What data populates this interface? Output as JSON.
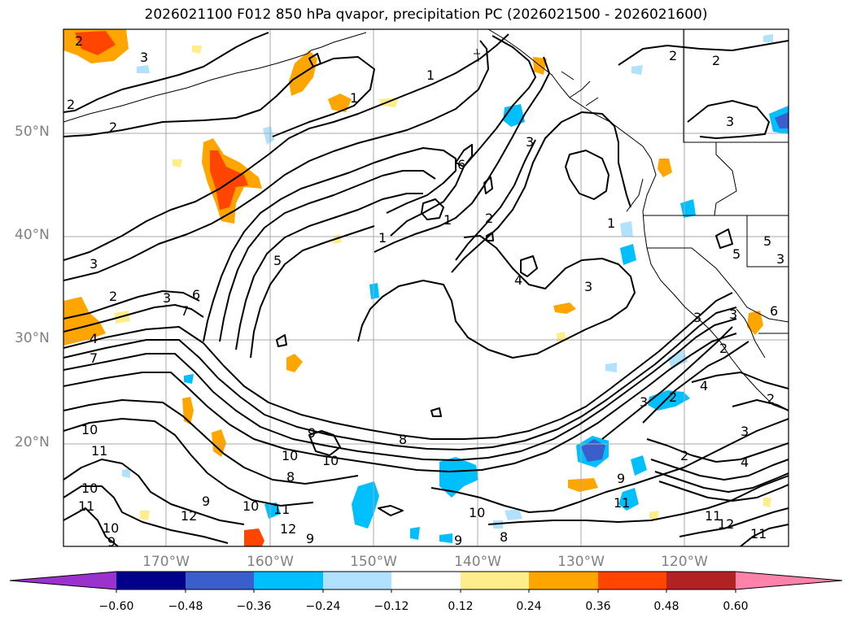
{
  "title": "2026021100 F012 850 hPa qvapor, precipitation PC (2026021500 - 2026021600)",
  "map": {
    "lat_labels": [
      "50°N",
      "40°N",
      "30°N",
      "20°N"
    ],
    "lon_labels": [
      "170°W",
      "160°W",
      "150°W",
      "140°W",
      "130°W",
      "120°W"
    ],
    "contour_labels": [
      {
        "text": "2",
        "name": "contour-label-2"
      },
      {
        "text": "3",
        "name": "contour-label-3"
      },
      {
        "text": "2",
        "name": "contour-label-2"
      },
      {
        "text": "2",
        "name": "contour-label-2"
      },
      {
        "text": "1",
        "name": "contour-label-1"
      },
      {
        "text": "1",
        "name": "contour-label-1"
      },
      {
        "text": "3",
        "name": "contour-label-3"
      },
      {
        "text": "2",
        "name": "contour-label-2"
      },
      {
        "text": "2",
        "name": "contour-label-2"
      },
      {
        "text": "2",
        "name": "contour-label-2"
      },
      {
        "text": "3",
        "name": "contour-label-3"
      },
      {
        "text": "6",
        "name": "contour-label-6"
      },
      {
        "text": "1",
        "name": "contour-label-1"
      },
      {
        "text": "1",
        "name": "contour-label-1"
      },
      {
        "text": "1",
        "name": "contour-label-1"
      },
      {
        "text": "3",
        "name": "contour-label-3"
      },
      {
        "text": "4",
        "name": "contour-label-4"
      },
      {
        "text": "3",
        "name": "contour-label-3"
      },
      {
        "text": "2",
        "name": "contour-label-2"
      },
      {
        "text": "3",
        "name": "contour-label-3"
      },
      {
        "text": "6",
        "name": "contour-label-6"
      },
      {
        "text": "7",
        "name": "contour-label-7"
      },
      {
        "text": "4",
        "name": "contour-label-4"
      },
      {
        "text": "7",
        "name": "contour-label-7"
      },
      {
        "text": "5",
        "name": "contour-label-5"
      },
      {
        "text": "10",
        "name": "contour-label-10"
      },
      {
        "text": "11",
        "name": "contour-label-11"
      },
      {
        "text": "10",
        "name": "contour-label-10"
      },
      {
        "text": "11",
        "name": "contour-label-11"
      },
      {
        "text": "10",
        "name": "contour-label-10"
      },
      {
        "text": "9",
        "name": "contour-label-9"
      },
      {
        "text": "12",
        "name": "contour-label-12"
      },
      {
        "text": "9",
        "name": "contour-label-9"
      },
      {
        "text": "10",
        "name": "contour-label-10"
      },
      {
        "text": "8",
        "name": "contour-label-8"
      },
      {
        "text": "10",
        "name": "contour-label-10"
      },
      {
        "text": "11",
        "name": "contour-label-11"
      },
      {
        "text": "12",
        "name": "contour-label-12"
      },
      {
        "text": "9",
        "name": "contour-label-9"
      },
      {
        "text": "9",
        "name": "contour-label-9"
      },
      {
        "text": "8",
        "name": "contour-label-8"
      },
      {
        "text": "10",
        "name": "contour-label-10"
      },
      {
        "text": "9",
        "name": "contour-label-9"
      },
      {
        "text": "8",
        "name": "contour-label-8"
      },
      {
        "text": "10",
        "name": "contour-label-10"
      },
      {
        "text": "9",
        "name": "contour-label-9"
      },
      {
        "text": "11",
        "name": "contour-label-11"
      },
      {
        "text": "3",
        "name": "contour-label-3"
      },
      {
        "text": "2",
        "name": "contour-label-2"
      },
      {
        "text": "3",
        "name": "contour-label-3"
      },
      {
        "text": "2",
        "name": "contour-label-2"
      },
      {
        "text": "4",
        "name": "contour-label-4"
      },
      {
        "text": "11",
        "name": "contour-label-11"
      },
      {
        "text": "12",
        "name": "contour-label-12"
      },
      {
        "text": "11",
        "name": "contour-label-11"
      },
      {
        "text": "4",
        "name": "contour-label-4"
      },
      {
        "text": "3",
        "name": "contour-label-3"
      },
      {
        "text": "5",
        "name": "contour-label-5"
      },
      {
        "text": "6",
        "name": "contour-label-6"
      },
      {
        "text": "2",
        "name": "contour-label-2"
      },
      {
        "text": "5",
        "name": "contour-label-5"
      },
      {
        "text": "2",
        "name": "contour-label-2"
      },
      {
        "text": "3",
        "name": "contour-label-3"
      },
      {
        "text": "3",
        "name": "contour-label-3"
      }
    ]
  },
  "colorbar": {
    "colors": [
      "#9a32cd",
      "#00008b",
      "#3a5fcd",
      "#00bfff",
      "#b0e2ff",
      "#ffffff",
      "#ffec8b",
      "#ffa500",
      "#ff4500",
      "#b22222",
      "#ff82ab"
    ],
    "labels": [
      "−0.60",
      "−0.48",
      "−0.36",
      "−0.24",
      "−0.12",
      "0.12",
      "0.24",
      "0.36",
      "0.48",
      "0.60"
    ]
  }
}
